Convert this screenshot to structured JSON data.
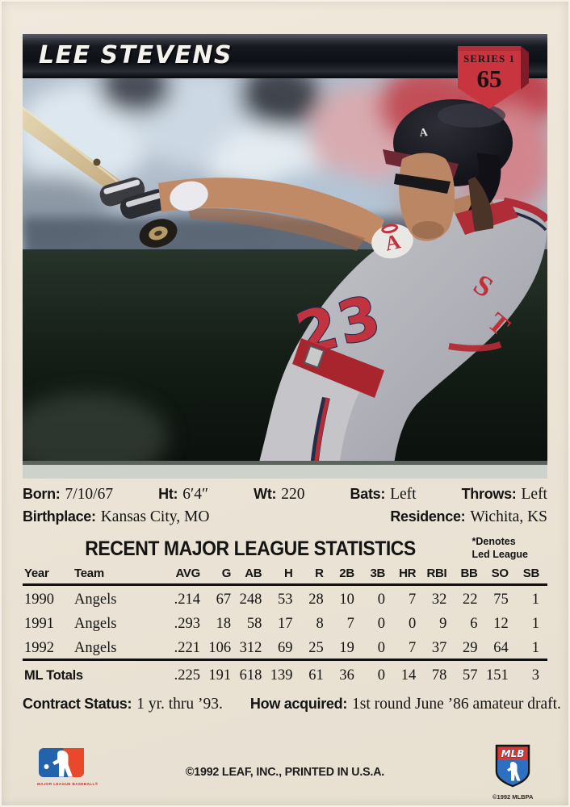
{
  "header": {
    "player_name": "LEE STEVENS",
    "series_label": "SERIES 1",
    "card_number": "65"
  },
  "bio": {
    "born_label": "Born:",
    "born": "7/10/67",
    "height_label": "Ht:",
    "height": "6′4″",
    "weight_label": "Wt:",
    "weight": "220",
    "bats_label": "Bats:",
    "bats": "Left",
    "throws_label": "Throws:",
    "throws": "Left",
    "birthplace_label": "Birthplace:",
    "birthplace": "Kansas City, MO",
    "residence_label": "Residence:",
    "residence": "Wichita, KS"
  },
  "stats": {
    "title": "RECENT MAJOR LEAGUE STATISTICS",
    "footnote_line1": "*Denotes",
    "footnote_line2": "Led League",
    "columns": [
      "Year",
      "Team",
      "AVG",
      "G",
      "AB",
      "H",
      "R",
      "2B",
      "3B",
      "HR",
      "RBI",
      "BB",
      "SO",
      "SB"
    ],
    "rows": [
      [
        "1990",
        "Angels",
        ".214",
        "67",
        "248",
        "53",
        "28",
        "10",
        "0",
        "7",
        "32",
        "22",
        "75",
        "1"
      ],
      [
        "1991",
        "Angels",
        ".293",
        "18",
        "58",
        "17",
        "8",
        "7",
        "0",
        "0",
        "9",
        "6",
        "12",
        "1"
      ],
      [
        "1992",
        "Angels",
        ".221",
        "106",
        "312",
        "69",
        "25",
        "19",
        "0",
        "7",
        "37",
        "29",
        "64",
        "1"
      ]
    ],
    "totals_label": "ML Totals",
    "totals": [
      ".225",
      "191",
      "618",
      "139",
      "61",
      "36",
      "0",
      "14",
      "78",
      "57",
      "151",
      "3"
    ]
  },
  "contract": {
    "status_label": "Contract Status:",
    "status": "1 yr. thru ’93.",
    "acquired_label": "How acquired:",
    "acquired": "1st round June ’86 amateur draft."
  },
  "footer": {
    "copyright": "©1992 LEAF, INC., PRINTED IN U.S.A.",
    "mlb_logo_caption": "MAJOR LEAGUE BASEBALL®",
    "mlbpa_logo_text": "MLB",
    "mlbpa_caption": "©1992 MLBPA"
  },
  "photo": {
    "jersey_number": "23",
    "helmet_logo": "A",
    "chest_logo": "A",
    "name_fragment_1": "S",
    "name_fragment_2": "T"
  },
  "colors": {
    "badge_red": "#c8353f",
    "banner_black": "#0e1017",
    "card_cream": "#ebe3d5",
    "team_red": "#bf3038",
    "team_navy": "#232a46"
  }
}
